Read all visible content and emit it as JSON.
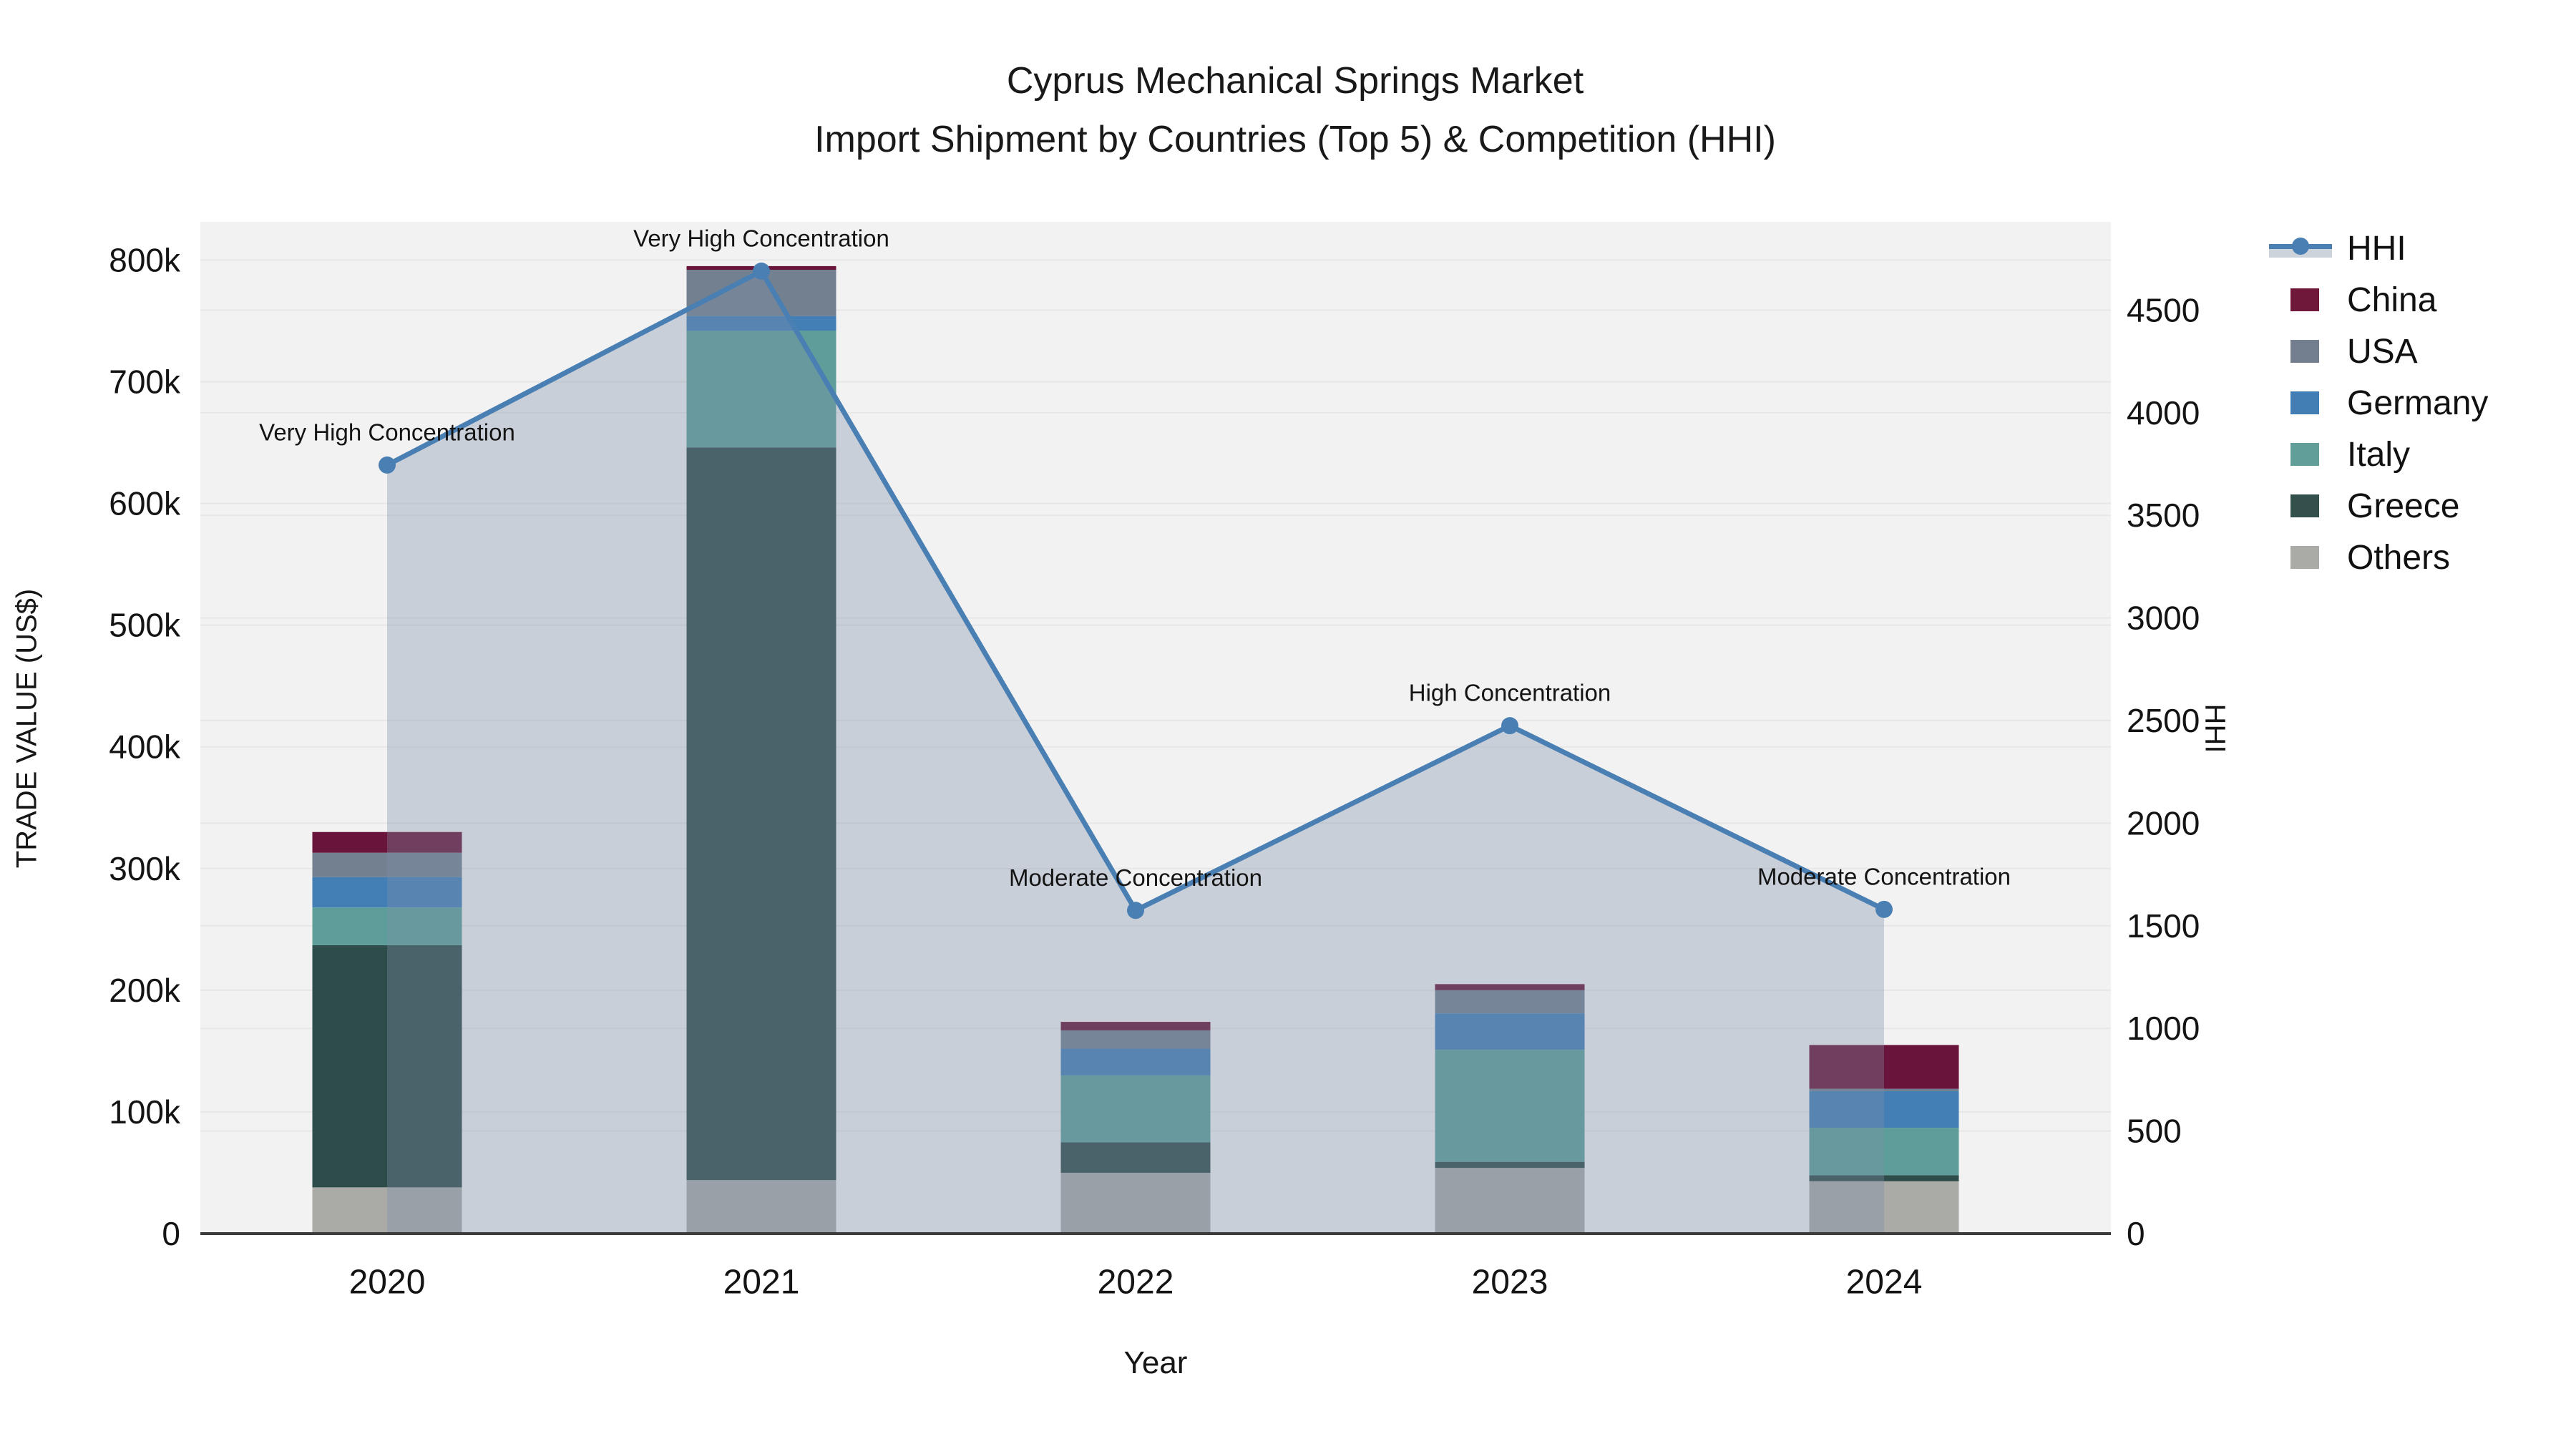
{
  "title": {
    "line1": "Cyprus Mechanical Springs Market",
    "line2": "Import Shipment by Countries (Top 5) & Competition (HHI)"
  },
  "axes": {
    "y_left_label": "TRADE VALUE (US$)",
    "y_right_label": "HHI",
    "x_label": "Year",
    "left_ticks": [
      "0",
      "100k",
      "200k",
      "300k",
      "400k",
      "500k",
      "600k",
      "700k",
      "800k"
    ],
    "right_ticks": [
      "0",
      "500",
      "1000",
      "1500",
      "2000",
      "2500",
      "3000",
      "3500",
      "4000",
      "4500"
    ]
  },
  "legend": {
    "items": [
      {
        "label": "HHI",
        "type": "line",
        "color": "#4a7fb3"
      },
      {
        "label": "China",
        "type": "square",
        "color": "#6f1839"
      },
      {
        "label": "USA",
        "type": "square",
        "color": "#737f8e"
      },
      {
        "label": "Germany",
        "type": "square",
        "color": "#427eb4"
      },
      {
        "label": "Italy",
        "type": "square",
        "color": "#619e9a"
      },
      {
        "label": "Greece",
        "type": "square",
        "color": "#33504d"
      },
      {
        "label": "Others",
        "type": "square",
        "color": "#aaaaa7"
      }
    ]
  },
  "chart_data": {
    "type": "combo",
    "bar_type": "stacked",
    "title": "Cyprus Mechanical Springs Market — Import Shipment by Countries (Top 5) & Competition (HHI)",
    "xlabel": "Year",
    "ylabel_left": "TRADE VALUE (US$)",
    "ylabel_right": "HHI",
    "categories": [
      "2020",
      "2021",
      "2022",
      "2023",
      "2024"
    ],
    "y_left_range": [
      0,
      800000
    ],
    "y_right_range": [
      0,
      4500
    ],
    "grid": true,
    "legend_position": "right",
    "series": [
      {
        "name": "Others",
        "color": "#aaaaa7",
        "values": [
          38000,
          44000,
          50000,
          54000,
          43000
        ]
      },
      {
        "name": "Greece",
        "color": "#2e4c49",
        "values": [
          199000,
          602000,
          25000,
          5000,
          5000
        ]
      },
      {
        "name": "Italy",
        "color": "#5d9e9a",
        "values": [
          31000,
          96000,
          55000,
          92000,
          39000
        ]
      },
      {
        "name": "Germany",
        "color": "#437fb5",
        "values": [
          25000,
          12000,
          22000,
          30000,
          30000
        ]
      },
      {
        "name": "USA",
        "color": "#72808f",
        "values": [
          20000,
          38000,
          15000,
          19000,
          2000
        ]
      },
      {
        "name": "China",
        "color": "#69143a",
        "values": [
          17000,
          3000,
          7000,
          5000,
          36000
        ]
      }
    ],
    "bar_totals": [
      330000,
      795000,
      174000,
      205000,
      155000
    ],
    "line_series": {
      "name": "HHI",
      "color": "#4a7fb3",
      "area_fill": "rgba(127,144,170,0.35)",
      "values": [
        3745,
        4690,
        1575,
        2475,
        1580
      ]
    },
    "annotations": [
      {
        "category": "2020",
        "text": "Very High Concentration"
      },
      {
        "category": "2021",
        "text": "Very High Concentration"
      },
      {
        "category": "2022",
        "text": "Moderate Concentration"
      },
      {
        "category": "2023",
        "text": "High Concentration"
      },
      {
        "category": "2024",
        "text": "Moderate Concentration"
      }
    ],
    "style": {
      "plot_bg": "#f2f2f2",
      "gridline_color": "#e7e7e7",
      "baseline_color": "#3c3c3c",
      "tick_font_px": 46,
      "annotation_font_px": 33
    }
  }
}
